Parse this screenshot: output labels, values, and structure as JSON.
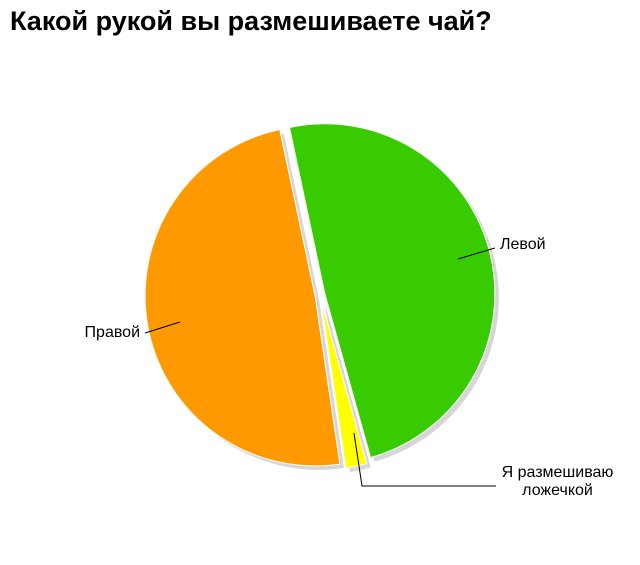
{
  "chart_data": {
    "type": "pie",
    "title": "Какой рукой вы размешиваете чай?",
    "categories": [
      "Левой",
      "Я размешиваю ложечкой",
      "Правой"
    ],
    "values": [
      49,
      2,
      49
    ],
    "colors": [
      "#38cc00",
      "#ffff00",
      "#ff9900"
    ]
  }
}
